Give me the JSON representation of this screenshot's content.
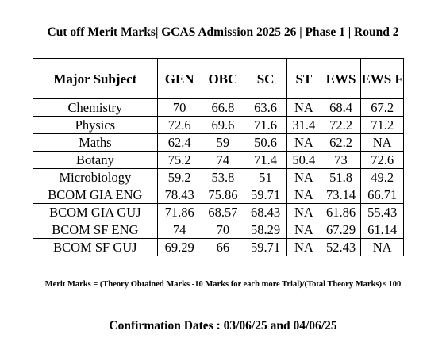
{
  "title": "Cut off Merit Marks| GCAS Admission 2025 26 | Phase 1 | Round 2",
  "table": {
    "headers": [
      "Major Subject",
      "GEN",
      "OBC",
      "SC",
      "ST",
      "EWS",
      "EWS F"
    ],
    "rows": [
      [
        "Chemistry",
        "70",
        "66.8",
        "63.6",
        "NA",
        "68.4",
        "67.2"
      ],
      [
        "Physics",
        "72.6",
        "69.6",
        "71.6",
        "31.4",
        "72.2",
        "71.2"
      ],
      [
        "Maths",
        "62.4",
        "59",
        "50.6",
        "NA",
        "62.2",
        "NA"
      ],
      [
        "Botany",
        "75.2",
        "74",
        "71.4",
        "50.4",
        "73",
        "72.6"
      ],
      [
        "Microbiology",
        "59.2",
        "53.8",
        "51",
        "NA",
        "51.8",
        "49.2"
      ],
      [
        "BCOM GIA ENG",
        "78.43",
        "75.86",
        "59.71",
        "NA",
        "73.14",
        "66.71"
      ],
      [
        "BCOM GIA GUJ",
        "71.86",
        "68.57",
        "68.43",
        "NA",
        "61.86",
        "55.43"
      ],
      [
        "BCOM SF ENG",
        "74",
        "70",
        "58.29",
        "NA",
        "67.29",
        "61.14"
      ],
      [
        "BCOM SF GUJ",
        "69.29",
        "66",
        "59.71",
        "NA",
        "52.43",
        "NA"
      ]
    ]
  },
  "formula": "Merit Marks = (Theory Obtained Marks -10 Marks for each more Trial)/(Total Theory Marks)× 100",
  "confirmation": "Confirmation Dates : 03/06/25 and 04/06/25"
}
